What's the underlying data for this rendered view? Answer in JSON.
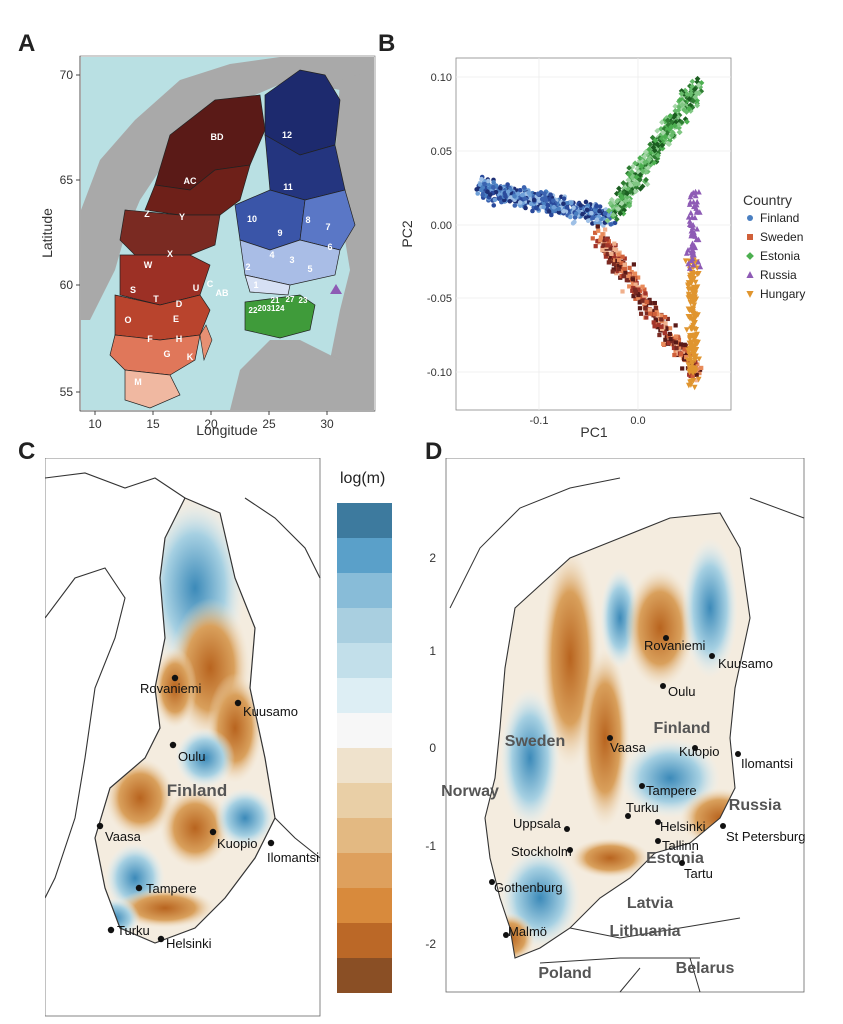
{
  "panels": {
    "a": {
      "letter": "A",
      "xlabel": "Longitude",
      "ylabel": "Latitude",
      "xticks": [
        "10",
        "15",
        "20",
        "25",
        "30"
      ],
      "yticks": [
        "70",
        "65",
        "60",
        "55"
      ],
      "swedish_regions": [
        "BD",
        "AC",
        "Z",
        "Y",
        "X",
        "W",
        "C",
        "U",
        "S",
        "T",
        "AB",
        "D",
        "O",
        "E",
        "F",
        "H",
        "G",
        "K",
        "M"
      ],
      "finnish_regions": [
        "12",
        "11",
        "10",
        "9",
        "8",
        "7",
        "6",
        "4",
        "2",
        "1",
        "3",
        "5"
      ],
      "estonian_regions": [
        "21",
        "27",
        "23",
        "22",
        "20",
        "31",
        "24"
      ]
    },
    "b": {
      "letter": "B",
      "xlabel": "PC1",
      "ylabel": "PC2",
      "xticks": [
        "-0.1",
        "0.0"
      ],
      "yticks": [
        "0.10",
        "0.05",
        "0.00",
        "-0.05",
        "-0.10"
      ],
      "legend_title": "Country",
      "legend": [
        {
          "label": "Finland",
          "color": "#4a7fc1",
          "shape": "circle"
        },
        {
          "label": "Sweden",
          "color": "#d0603a",
          "shape": "square"
        },
        {
          "label": "Estonia",
          "color": "#4caf50",
          "shape": "diamond"
        },
        {
          "label": "Russia",
          "color": "#8e5bb5",
          "shape": "triangle"
        },
        {
          "label": "Hungary",
          "color": "#e0952f",
          "shape": "triangle-down"
        }
      ]
    },
    "c": {
      "letter": "C",
      "colorbar_title": "log(m)",
      "country_label": "Finland",
      "cities": [
        "Rovaniemi",
        "Kuusamo",
        "Oulu",
        "Vaasa",
        "Kuopio",
        "Ilomantsi",
        "Tampere",
        "Turku",
        "Helsinki"
      ]
    },
    "d": {
      "letter": "D",
      "yticks": [
        "2",
        "1",
        "0",
        "-1",
        "-2"
      ],
      "countries": [
        "Sweden",
        "Finland",
        "Norway",
        "Russia",
        "Estonia",
        "Latvia",
        "Lithuania",
        "Poland",
        "Belarus"
      ],
      "cities": [
        "Rovaniemi",
        "Kuusamo",
        "Oulu",
        "Vaasa",
        "Kuopio",
        "Ilomantsi",
        "Tampere",
        "Turku",
        "Helsinki",
        "Tallinn",
        "St Petersburg",
        "Uppsala",
        "Stockholm",
        "Tartu",
        "Gothenburg",
        "Malmö"
      ]
    }
  },
  "colors": {
    "sea": "#b9e0e3",
    "land_gray": "#a9a9a9",
    "sweden_dark": "#5a1a17",
    "sweden_mid": "#a3352a",
    "sweden_light": "#e9a58c",
    "finland_dark": "#1d2a6e",
    "finland_mid": "#4a64b8",
    "finland_light": "#c9d6f0",
    "estonia": "#3f9b3a",
    "brown": "#c76a22",
    "blue": "#5da6cc"
  }
}
